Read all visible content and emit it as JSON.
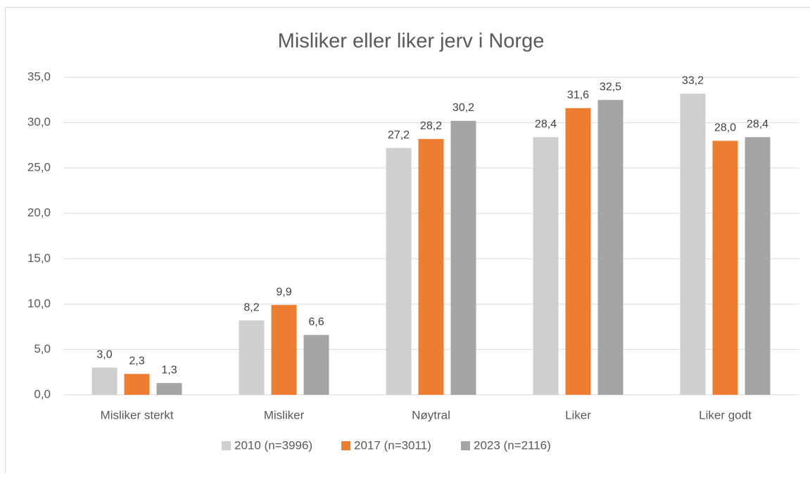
{
  "chart_data": {
    "type": "bar",
    "title": "Misliker eller liker jerv i Norge",
    "categories": [
      "Misliker sterkt",
      "Misliker",
      "Nøytral",
      "Liker",
      "Liker godt"
    ],
    "series": [
      {
        "name": "2010 (n=3996)",
        "color": "#d0cece",
        "values": [
          3.0,
          8.2,
          27.2,
          28.4,
          33.2
        ],
        "value_labels": [
          "3,0",
          "8,2",
          "27,2",
          "28,4",
          "33,2"
        ]
      },
      {
        "name": "2017 (n=3011)",
        "color": "#ed7d31",
        "values": [
          2.3,
          9.9,
          28.2,
          31.6,
          28.0
        ],
        "value_labels": [
          "2,3",
          "9,9",
          "28,2",
          "31,6",
          "28,0"
        ]
      },
      {
        "name": "2023 (n=2116)",
        "color": "#a5a5a5",
        "values": [
          1.3,
          6.6,
          30.2,
          32.5,
          28.4
        ],
        "value_labels": [
          "1,3",
          "6,6",
          "30,2",
          "32,5",
          "28,4"
        ]
      }
    ],
    "ylim": [
      0,
      35
    ],
    "yticks": [
      {
        "value": 0,
        "label": "0,0"
      },
      {
        "value": 5,
        "label": "5,0"
      },
      {
        "value": 10,
        "label": "10,0"
      },
      {
        "value": 15,
        "label": "15,0"
      },
      {
        "value": 20,
        "label": "20,0"
      },
      {
        "value": 25,
        "label": "25,0"
      },
      {
        "value": 30,
        "label": "30,0"
      },
      {
        "value": 35,
        "label": "35,0"
      }
    ],
    "grid": true,
    "legend": "bottom"
  }
}
